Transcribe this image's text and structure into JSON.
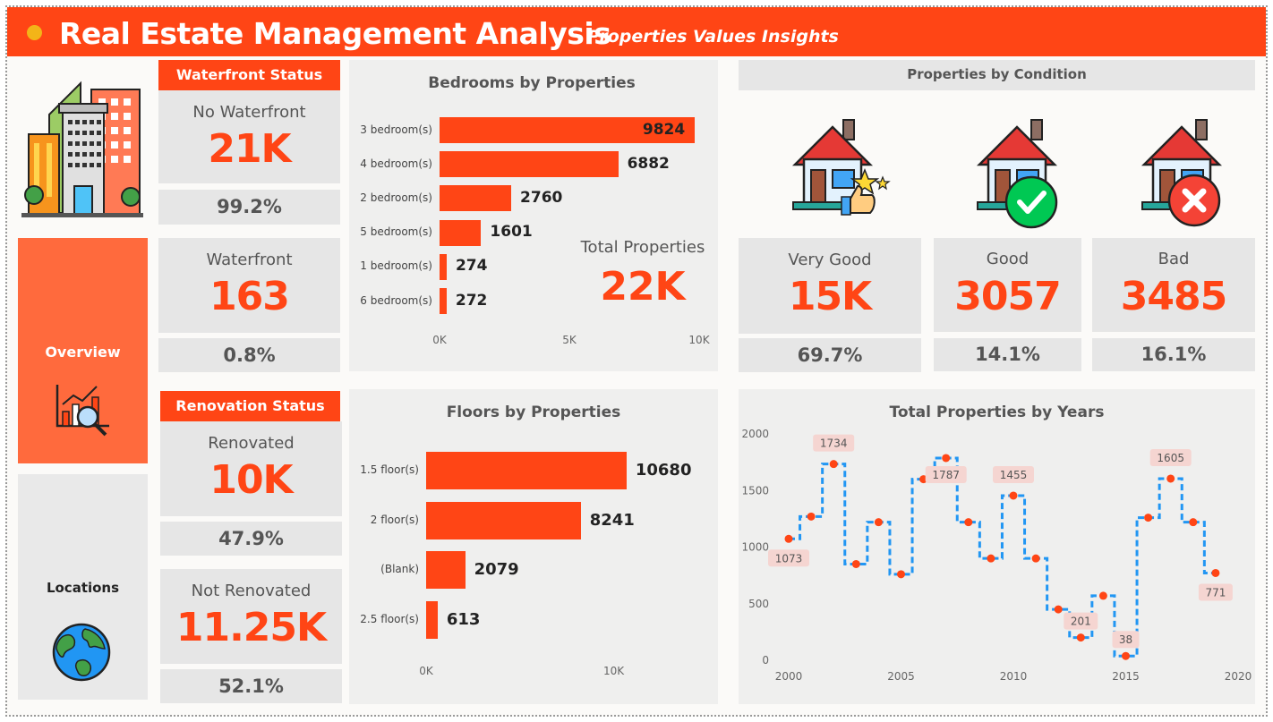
{
  "header": {
    "title": "Real Estate Management Analysis",
    "subtitle": "Properties Values Insights"
  },
  "colors": {
    "accent": "#ff4515",
    "nav_active": "#ff6a3d",
    "dot": "#f3b418",
    "line": "#2196f3",
    "panel": "#efefee",
    "box": "#e6e6e6"
  },
  "nav": {
    "overview_label": "Overview",
    "locations_label": "Locations",
    "overview_icon": "chart-magnifier-icon",
    "locations_icon": "globe-icon",
    "logo_icon": "buildings-icon"
  },
  "waterfront": {
    "header": "Waterfront Status",
    "no_waterfront": {
      "label": "No Waterfront",
      "value": "21K",
      "pct": "99.2%"
    },
    "waterfront": {
      "label": "Waterfront",
      "value": "163",
      "pct": "0.8%"
    }
  },
  "renovation": {
    "header": "Renovation Status",
    "renovated": {
      "label": "Renovated",
      "value": "10K",
      "pct": "47.9%"
    },
    "not_renovated": {
      "label": "Not Renovated",
      "value": "11.25K",
      "pct": "52.1%"
    }
  },
  "total_properties": {
    "label": "Total Properties",
    "value": "22K"
  },
  "condition": {
    "title": "Properties by Condition",
    "very_good": {
      "label": "Very Good",
      "value": "15K",
      "pct": "69.7%",
      "icon": "house-thumbs-up-icon"
    },
    "good": {
      "label": "Good",
      "value": "3057",
      "pct": "14.1%",
      "icon": "house-check-icon"
    },
    "bad": {
      "label": "Bad",
      "value": "3485",
      "pct": "16.1%",
      "icon": "house-x-icon"
    }
  },
  "chart_data": [
    {
      "type": "bar",
      "orientation": "horizontal",
      "title": "Bedrooms by Properties",
      "categories": [
        "3 bedroom(s)",
        "4 bedroom(s)",
        "2 bedroom(s)",
        "5 bedroom(s)",
        "1 bedroom(s)",
        "6 bedroom(s)"
      ],
      "values": [
        9824,
        6882,
        2760,
        1601,
        274,
        272
      ],
      "labels": [
        "9824",
        "6882",
        "2760",
        "1601",
        "274",
        "272"
      ],
      "xlim": [
        0,
        10000
      ],
      "ticks": [
        "0K",
        "5K",
        "10K"
      ],
      "grid": false
    },
    {
      "type": "bar",
      "orientation": "horizontal",
      "title": "Floors by Properties",
      "categories": [
        "1.5 floor(s)",
        "2 floor(s)",
        "(Blank)",
        "2.5 floor(s)"
      ],
      "values": [
        10680,
        8241,
        2079,
        613
      ],
      "labels": [
        "10680",
        "8241",
        "2079",
        "613"
      ],
      "xlim": [
        0,
        12500
      ],
      "ticks": [
        "0K",
        "10K"
      ],
      "grid": false
    },
    {
      "type": "line",
      "style": "stepped-dashed",
      "title": "Total Properties by Years",
      "x": [
        2000,
        2001,
        2002,
        2003,
        2004,
        2005,
        2006,
        2007,
        2008,
        2009,
        2010,
        2011,
        2012,
        2013,
        2014,
        2015,
        2016,
        2017,
        2018,
        2019
      ],
      "y": [
        1073,
        1270,
        1734,
        850,
        1220,
        760,
        1600,
        1787,
        1220,
        900,
        1455,
        900,
        450,
        201,
        570,
        38,
        1260,
        1605,
        1220,
        771
      ],
      "data_labels": [
        {
          "x": 2000,
          "text": "1073"
        },
        {
          "x": 2002,
          "text": "1734"
        },
        {
          "x": 2007,
          "text": "1787"
        },
        {
          "x": 2010,
          "text": "1455"
        },
        {
          "x": 2013,
          "text": "201"
        },
        {
          "x": 2015,
          "text": "38"
        },
        {
          "x": 2017,
          "text": "1605"
        },
        {
          "x": 2019,
          "text": "771"
        }
      ],
      "xlim": [
        2000,
        2020
      ],
      "ylim": [
        0,
        2000
      ],
      "xticks": [
        "2000",
        "2005",
        "2010",
        "2015",
        "2020"
      ],
      "yticks": [
        "0",
        "500",
        "1000",
        "1500",
        "2000"
      ],
      "grid": false
    }
  ]
}
